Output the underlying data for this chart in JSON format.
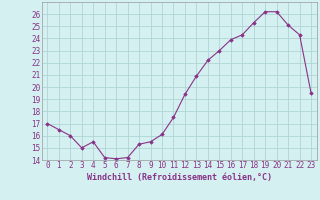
{
  "x": [
    0,
    1,
    2,
    3,
    4,
    5,
    6,
    7,
    8,
    9,
    10,
    11,
    12,
    13,
    14,
    15,
    16,
    17,
    18,
    19,
    20,
    21,
    22,
    23
  ],
  "y": [
    17,
    16.5,
    16,
    15,
    15.5,
    14.2,
    14.1,
    14.2,
    15.3,
    15.5,
    16.1,
    17.5,
    19.4,
    20.9,
    22.2,
    23.0,
    23.9,
    24.3,
    25.3,
    26.2,
    26.2,
    25.1,
    24.3,
    19.5
  ],
  "xlabel": "Windchill (Refroidissement éolien,°C)",
  "ylabel": "",
  "ylim": [
    14,
    27
  ],
  "xlim": [
    -0.5,
    23.5
  ],
  "line_color": "#883388",
  "marker_color": "#883388",
  "bg_color": "#d4f0f0",
  "grid_color": "#b0d4d4",
  "tick_label_color": "#883388",
  "xlabel_color": "#883388",
  "yticks": [
    14,
    15,
    16,
    17,
    18,
    19,
    20,
    21,
    22,
    23,
    24,
    25,
    26
  ],
  "xticks": [
    0,
    1,
    2,
    3,
    4,
    5,
    6,
    7,
    8,
    9,
    10,
    11,
    12,
    13,
    14,
    15,
    16,
    17,
    18,
    19,
    20,
    21,
    22,
    23
  ],
  "xlabel_fontsize": 6.0,
  "tick_fontsize": 5.5
}
